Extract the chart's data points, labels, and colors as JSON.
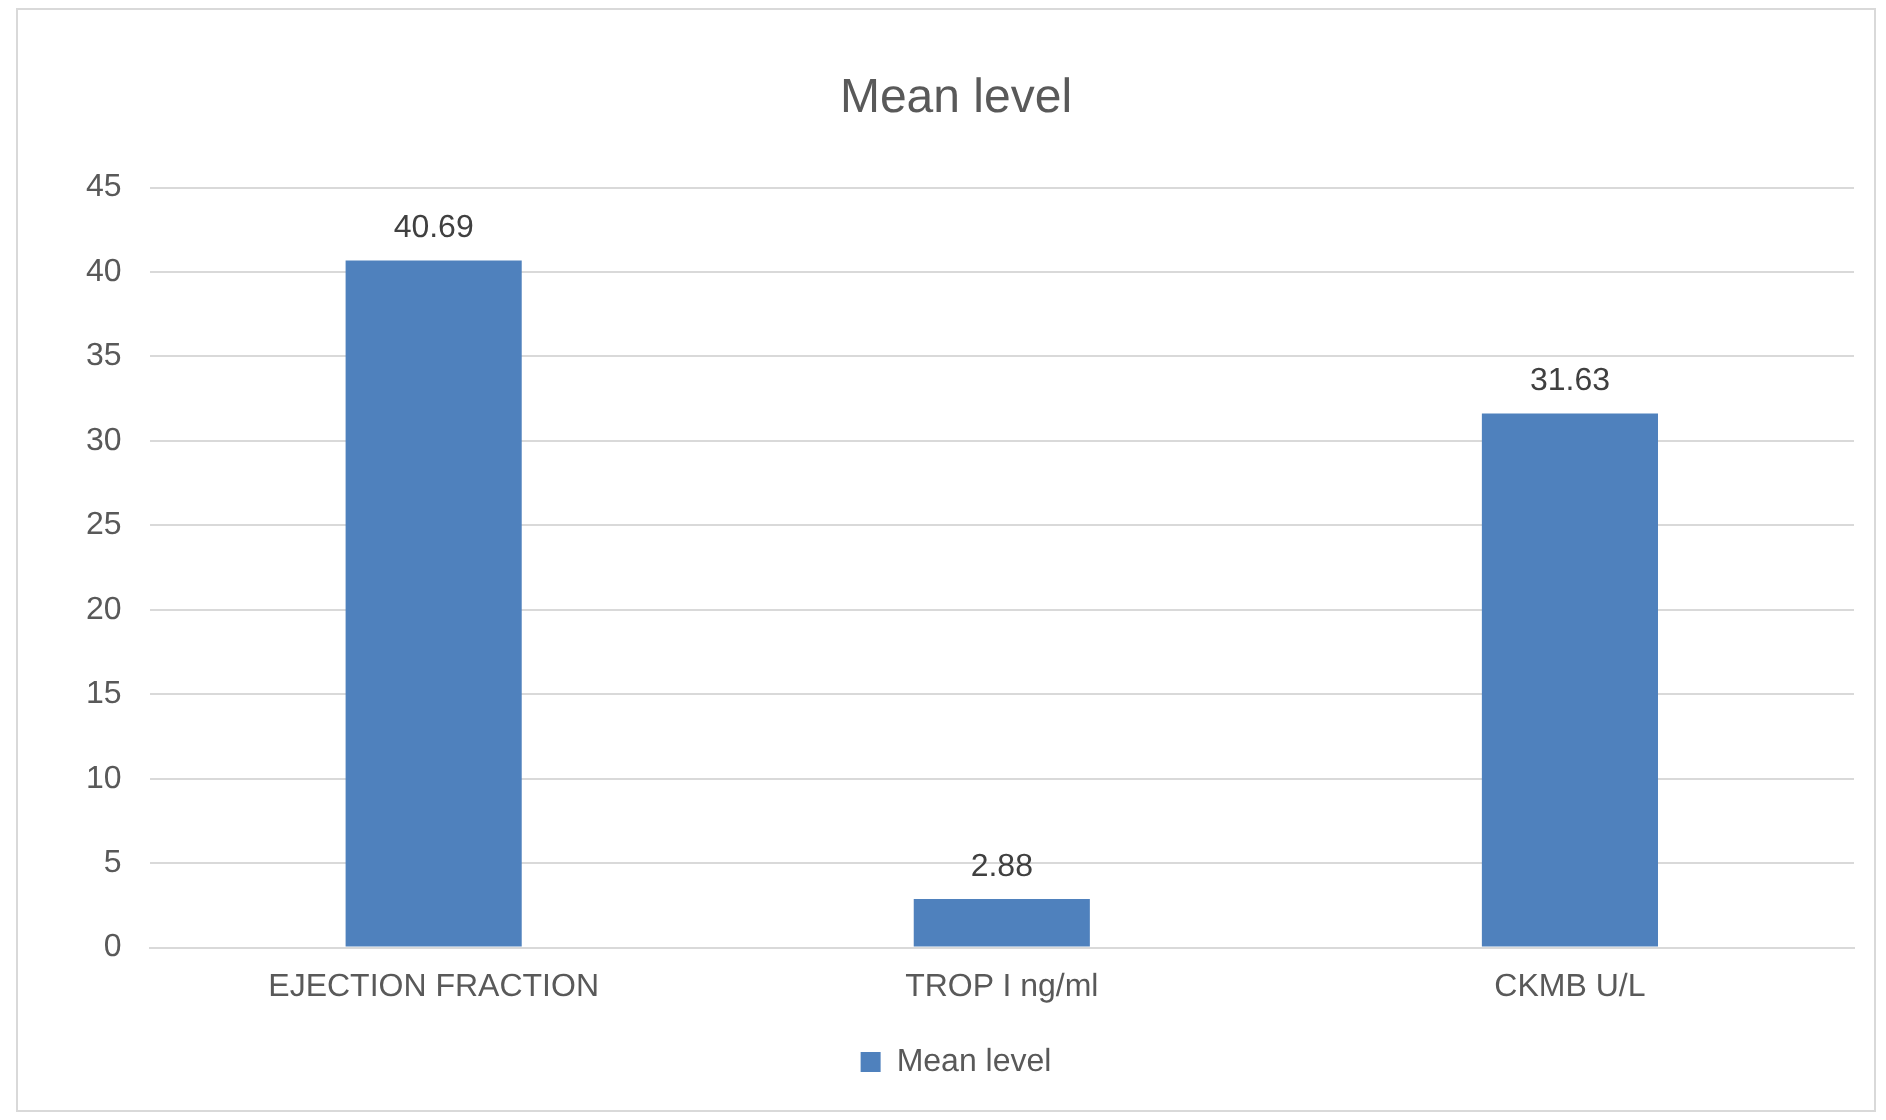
{
  "chart_data": {
    "type": "bar",
    "title": "Mean level",
    "categories": [
      "EJECTION FRACTION",
      "TROP I ng/ml",
      "CKMB U/L"
    ],
    "series": [
      {
        "name": "Mean level",
        "color": "#4f81bd",
        "values": [
          40.69,
          2.88,
          31.63
        ]
      }
    ],
    "ylim": [
      0,
      45
    ],
    "yticks": [
      0,
      5,
      10,
      15,
      20,
      25,
      30,
      35,
      40,
      45
    ],
    "grid": "y",
    "legend": "bottom",
    "data_labels": true
  }
}
